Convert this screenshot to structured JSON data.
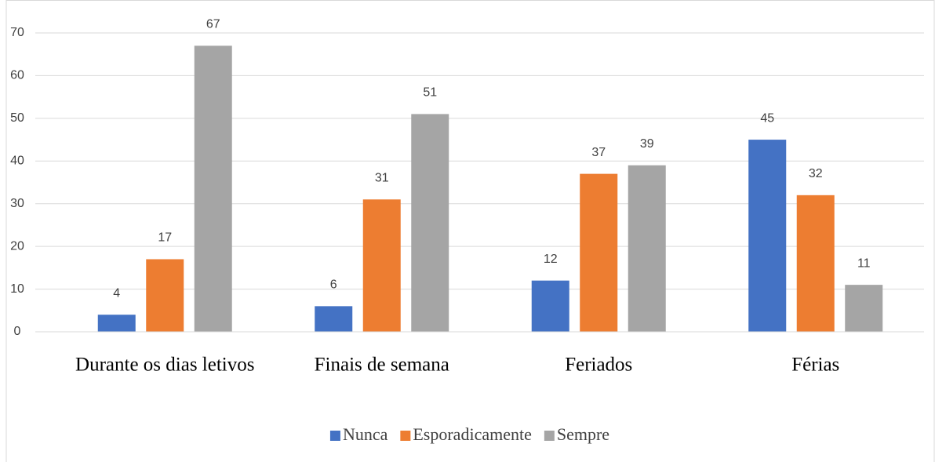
{
  "chart_data": {
    "type": "bar",
    "categories": [
      "Durante os dias letivos",
      "Finais de semana",
      "Feriados",
      "Férias"
    ],
    "series": [
      {
        "name": "Nunca",
        "color": "#4472c4",
        "values": [
          4,
          6,
          12,
          45
        ]
      },
      {
        "name": "Esporadicamente",
        "color": "#ed7d31",
        "values": [
          17,
          31,
          37,
          32
        ]
      },
      {
        "name": "Sempre",
        "color": "#a5a5a5",
        "values": [
          67,
          51,
          39,
          11
        ]
      }
    ],
    "ylim": [
      0,
      70
    ],
    "yticks": [
      0,
      10,
      20,
      30,
      40,
      50,
      60,
      70
    ],
    "grid": true,
    "legend": "bottom"
  }
}
